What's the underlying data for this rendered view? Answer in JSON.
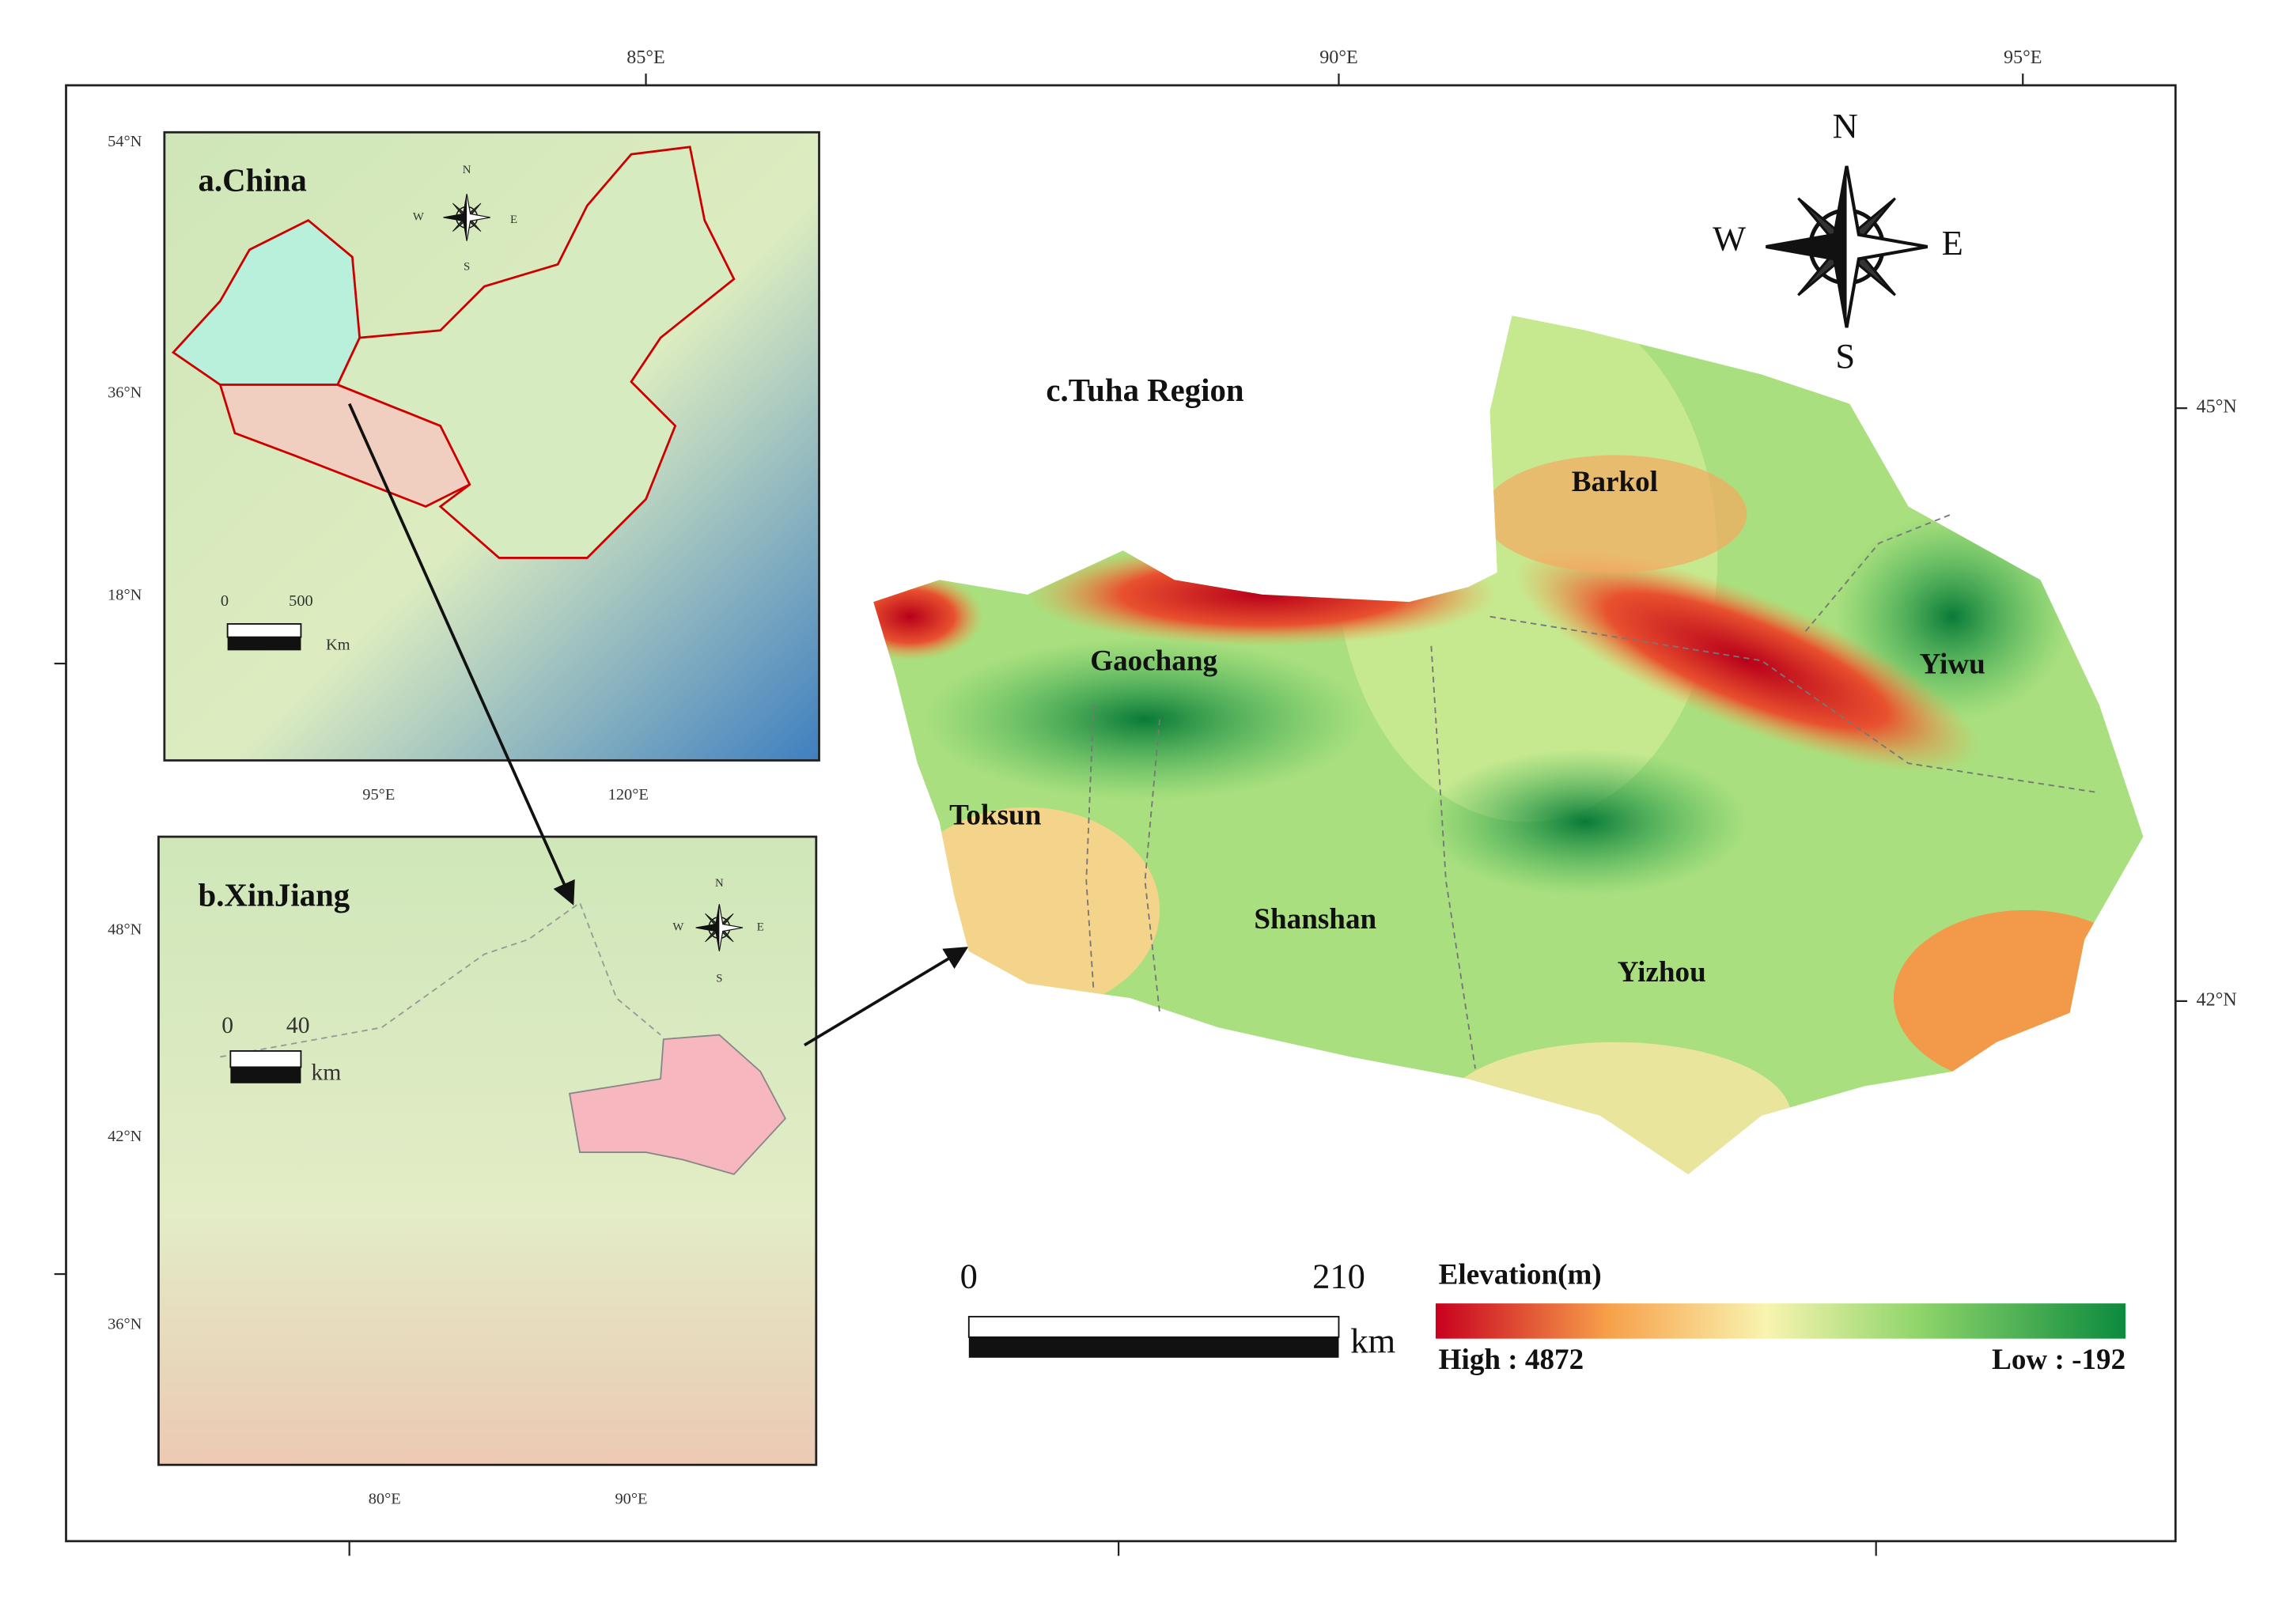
{
  "axes": {
    "top_labels": [
      "85°E",
      "90°E",
      "95°E"
    ],
    "right_labels": [
      "45°N",
      "42°N"
    ]
  },
  "panel_a": {
    "title": "a.China",
    "lat_labels": [
      "54°N",
      "36°N",
      "18°N"
    ],
    "lon_labels": [
      "95°E",
      "120°E"
    ],
    "scale": {
      "start": "0",
      "end": "500",
      "unit": "Km"
    },
    "compass": {
      "n": "N",
      "s": "S",
      "w": "W",
      "e": "E"
    }
  },
  "panel_b": {
    "title": "b.XinJiang",
    "lat_labels": [
      "48°N",
      "42°N",
      "36°N"
    ],
    "lon_labels": [
      "80°E",
      "90°E"
    ],
    "scale": {
      "start": "0",
      "end": "40",
      "unit": "km"
    },
    "compass": {
      "n": "N",
      "s": "S",
      "w": "W",
      "e": "E"
    }
  },
  "panel_c": {
    "title": "c.Tuha Region",
    "regions": [
      "Barkol",
      "Gaochang",
      "Yiwu",
      "Toksun",
      "Shanshan",
      "Yizhou"
    ],
    "compass": {
      "n": "N",
      "s": "S",
      "w": "W",
      "e": "E"
    },
    "scale": {
      "start": "0",
      "end": "210",
      "unit": "km"
    },
    "legend": {
      "title": "Elevation(m)",
      "high": "High : 4872",
      "low": "Low : -192"
    }
  }
}
